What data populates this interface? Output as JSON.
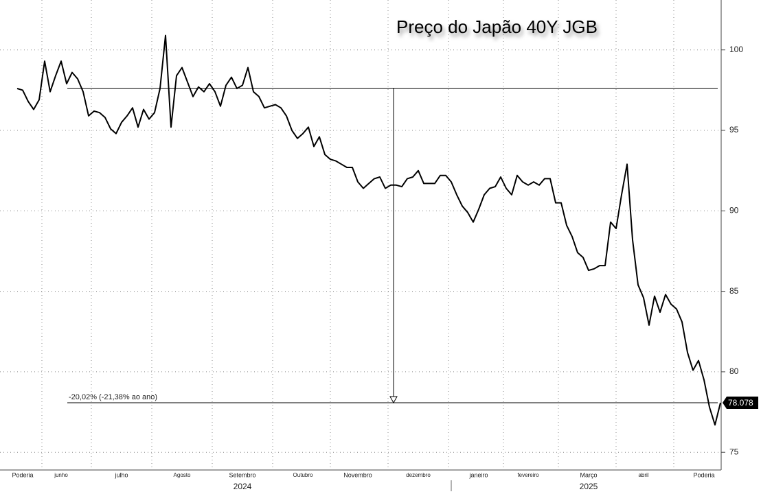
{
  "chart_data": {
    "type": "line",
    "title": "Preço do Japão 40Y JGB",
    "categories": [
      null,
      "Poderia",
      null,
      null,
      null,
      null,
      null,
      null,
      "junho",
      null,
      null,
      null,
      null,
      null,
      null,
      null,
      null,
      null,
      null,
      "julho",
      null,
      null,
      null,
      null,
      null,
      null,
      null,
      null,
      null,
      null,
      "Agosto",
      null,
      null,
      null,
      null,
      null,
      null,
      null,
      null,
      null,
      null,
      "Setembro",
      null,
      null,
      null,
      null,
      null,
      null,
      null,
      null,
      null,
      null,
      "Outubro",
      null,
      null,
      null,
      null,
      null,
      null,
      null,
      null,
      null,
      "Novembro",
      null,
      null,
      null,
      null,
      null,
      null,
      null,
      null,
      null,
      null,
      "dezembro",
      null,
      null,
      null,
      null,
      null,
      null,
      null,
      null,
      null,
      null,
      "janeiro",
      null,
      null,
      null,
      null,
      null,
      null,
      null,
      null,
      "fevereiro",
      null,
      null,
      null,
      null,
      null,
      null,
      null,
      null,
      null,
      null,
      "Março",
      null,
      null,
      null,
      null,
      null,
      null,
      null,
      null,
      null,
      "abril",
      null,
      null,
      null,
      null,
      null,
      null,
      null,
      null,
      null,
      null,
      "Poderia",
      null,
      null,
      null
    ],
    "years": [
      {
        "label": "2024",
        "category": 41
      },
      {
        "label": "2025",
        "category": 104
      }
    ],
    "series": [
      {
        "name": "40Y JGB",
        "color": "#000000",
        "values": [
          97.6,
          97.5,
          96.8,
          96.3,
          96.9,
          99.3,
          97.4,
          98.4,
          99.3,
          97.9,
          98.6,
          98.2,
          97.4,
          95.9,
          96.2,
          96.1,
          95.8,
          95.1,
          94.8,
          95.5,
          95.9,
          96.4,
          95.2,
          96.3,
          95.7,
          96.1,
          97.6,
          100.9,
          95.2,
          98.4,
          98.9,
          98.0,
          97.1,
          97.7,
          97.4,
          97.9,
          97.4,
          96.5,
          97.8,
          98.3,
          97.6,
          97.8,
          98.9,
          97.4,
          97.1,
          96.4,
          96.5,
          96.6,
          96.4,
          95.9,
          95.0,
          94.5,
          94.8,
          95.2,
          94.0,
          94.6,
          93.5,
          93.2,
          93.1,
          92.9,
          92.7,
          92.7,
          91.8,
          91.4,
          91.7,
          92.0,
          92.1,
          91.4,
          91.6,
          91.6,
          91.5,
          92.0,
          92.1,
          92.5,
          91.7,
          91.7,
          91.7,
          92.2,
          92.2,
          91.8,
          91.0,
          90.3,
          89.9,
          89.3,
          90.1,
          91.0,
          91.4,
          91.5,
          92.1,
          91.4,
          91.0,
          92.2,
          91.8,
          91.6,
          91.8,
          91.6,
          92.0,
          92.0,
          90.5,
          90.5,
          89.1,
          88.4,
          87.4,
          87.1,
          86.3,
          86.4,
          86.6,
          86.6,
          89.3,
          88.9,
          91.0,
          92.9,
          88.2,
          85.4,
          84.6,
          82.9,
          84.7,
          83.7,
          84.8,
          84.2,
          83.9,
          83.1,
          81.2,
          80.1,
          80.7,
          79.5,
          77.8,
          76.7,
          78.078
        ]
      }
    ],
    "last_value_label": "78.078",
    "annotation": {
      "text": "-20,02% (-21,38% ao ano)",
      "from": 97.62,
      "to": 78.078
    },
    "ylim": [
      73.9,
      103.1
    ],
    "yticks": [
      75,
      80,
      85,
      90,
      95,
      100
    ],
    "grid": true
  }
}
